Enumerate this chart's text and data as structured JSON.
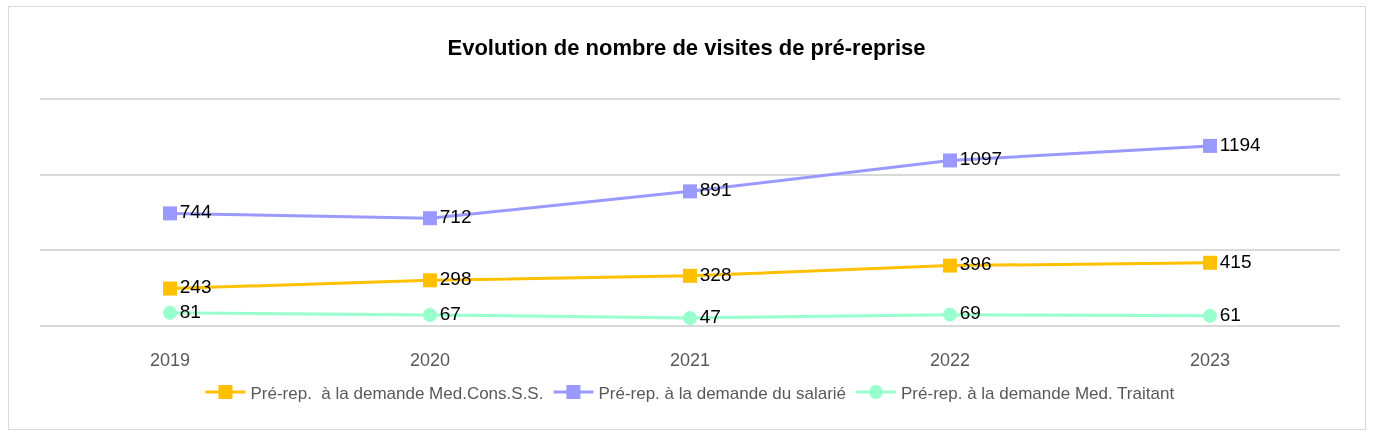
{
  "chart_data": {
    "type": "line",
    "title": "Evolution de nombre de visites de pré-reprise",
    "categories": [
      "2019",
      "2020",
      "2021",
      "2022",
      "2023"
    ],
    "series": [
      {
        "name": "Pré-rep.  à la demande Med.Cons.S.S.",
        "color": "#ffc000",
        "values": [
          243,
          298,
          328,
          396,
          415
        ],
        "marker": "square"
      },
      {
        "name": "Pré-rep. à la demande du salarié",
        "color": "#9999ff",
        "values": [
          744,
          712,
          891,
          1097,
          1194
        ],
        "marker": "square"
      },
      {
        "name": "Pré-rep. à la demande Med. Traitant",
        "color": "#99ffcc",
        "values": [
          81,
          67,
          47,
          69,
          61
        ],
        "marker": "circle"
      }
    ],
    "ylim": [
      0,
      1500
    ],
    "yticks": [
      {
        "value": 0,
        "label": null
      },
      {
        "value": 500,
        "label": null
      },
      {
        "value": 1000,
        "label": null
      },
      {
        "value": 1500,
        "label": null
      }
    ],
    "grid": "y",
    "legend": "bottom",
    "tick_labels": "x",
    "data_labels": true,
    "line_style": "solid"
  }
}
